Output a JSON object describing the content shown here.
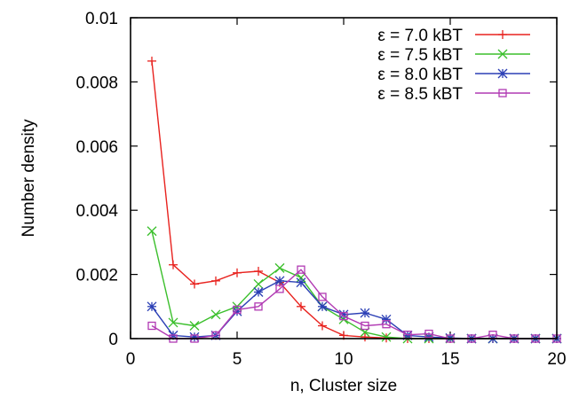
{
  "chart_data": {
    "type": "line",
    "title": "",
    "xlabel": "n, Cluster size",
    "ylabel": "Number density",
    "xlim": [
      0,
      20
    ],
    "ylim": [
      0,
      0.01
    ],
    "x_ticks": [
      0,
      5,
      10,
      15,
      20
    ],
    "y_ticks": [
      0,
      0.002,
      0.004,
      0.006,
      0.008,
      0.01
    ],
    "x_tick_labels": [
      "0",
      "5",
      "10",
      "15",
      "20"
    ],
    "y_tick_labels": [
      "0",
      "0.002",
      "0.004",
      "0.006",
      "0.008",
      "0.01"
    ],
    "grid": false,
    "legend_position": "top-right",
    "x": [
      1,
      2,
      3,
      4,
      5,
      6,
      7,
      8,
      9,
      10,
      11,
      12,
      13,
      14,
      15,
      16,
      17,
      18,
      19,
      20
    ],
    "series": [
      {
        "name": "ε = 7.0 kBT",
        "color": "#e8221e",
        "marker": "plus",
        "values": [
          0.00865,
          0.0023,
          0.0017,
          0.0018,
          0.00205,
          0.0021,
          0.00175,
          0.001,
          0.0004,
          0.0001,
          5e-05,
          2e-05,
          0.0,
          0.0,
          0.0,
          0.0,
          0.0,
          0.0,
          0.0,
          0.0
        ]
      },
      {
        "name": "ε = 7.5 kBT",
        "color": "#3bbf2c",
        "marker": "cross",
        "values": [
          0.00335,
          0.0005,
          0.0004,
          0.00075,
          0.001,
          0.0017,
          0.0022,
          0.0019,
          0.001,
          0.0006,
          0.0002,
          5e-05,
          0.0,
          0.0,
          0.0,
          0.0,
          0.0,
          0.0,
          0.0,
          0.0
        ]
      },
      {
        "name": "ε = 8.0 kBT",
        "color": "#2b3fb5",
        "marker": "star",
        "values": [
          0.001,
          0.0001,
          5e-05,
          0.0001,
          0.00085,
          0.00145,
          0.0018,
          0.00175,
          0.001,
          0.00075,
          0.0008,
          0.0006,
          0.0001,
          5e-05,
          2e-05,
          0.0,
          0.0,
          0.0,
          0.0,
          0.0
        ]
      },
      {
        "name": "ε = 8.5 kBT",
        "color": "#b13ab3",
        "marker": "square",
        "values": [
          0.0004,
          0.0,
          0.0,
          0.0001,
          0.0009,
          0.001,
          0.00155,
          0.00215,
          0.0013,
          0.0007,
          0.0004,
          0.00045,
          0.00012,
          0.00015,
          0.0,
          0.0,
          0.00012,
          0.0,
          0.0,
          0.0
        ]
      }
    ]
  }
}
